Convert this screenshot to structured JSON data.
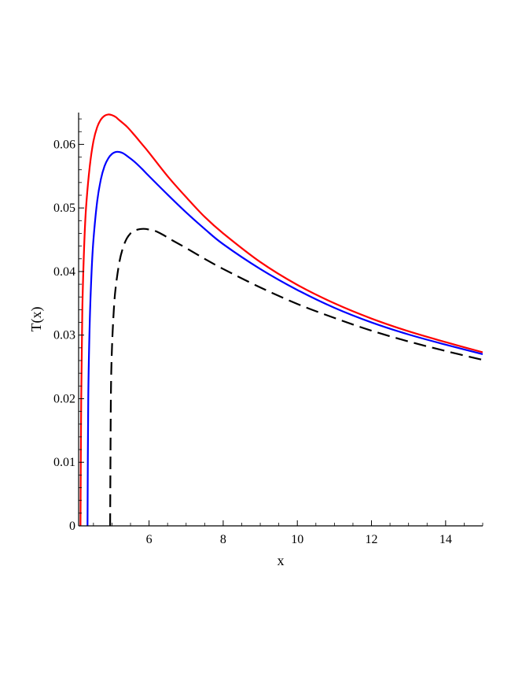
{
  "chart_data": {
    "type": "line",
    "title": "",
    "xlabel": "x",
    "ylabel": "T(x)",
    "xlim": [
      4.1,
      15
    ],
    "ylim": [
      0,
      0.065
    ],
    "xticks": [
      6,
      8,
      10,
      12,
      14
    ],
    "xtick_labels": [
      "6",
      "8",
      "10",
      "12",
      "14"
    ],
    "yticks": [
      0,
      0.01,
      0.02,
      0.03,
      0.04,
      0.05,
      0.06
    ],
    "ytick_labels": [
      "0",
      "0.01",
      "0.02",
      "0.03",
      "0.04",
      "0.05",
      "0.06"
    ],
    "grid": false,
    "legend": "none",
    "series": [
      {
        "color": "#ff0000",
        "dash": "solid",
        "x": [
          4.15,
          4.17,
          4.2,
          4.25,
          4.3,
          4.4,
          4.5,
          4.6,
          4.7,
          4.8,
          4.9,
          5.0,
          5.1,
          5.2,
          5.4,
          5.6,
          5.8,
          6.0,
          6.5,
          7.0,
          7.5,
          8.0,
          9.0,
          10.0,
          11.0,
          12.0,
          13.0,
          14.0,
          15.0
        ],
        "y": [
          0,
          0.02,
          0.034,
          0.044,
          0.05,
          0.0565,
          0.0605,
          0.0627,
          0.0639,
          0.0645,
          0.0647,
          0.0646,
          0.0643,
          0.0638,
          0.0628,
          0.0615,
          0.0601,
          0.0587,
          0.055,
          0.0517,
          0.0486,
          0.046,
          0.0415,
          0.0379,
          0.035,
          0.0326,
          0.0306,
          0.0289,
          0.0273
        ]
      },
      {
        "color": "#0000ff",
        "dash": "solid",
        "x": [
          4.34,
          4.36,
          4.4,
          4.45,
          4.5,
          4.6,
          4.7,
          4.8,
          4.9,
          5.0,
          5.1,
          5.2,
          5.3,
          5.4,
          5.6,
          5.8,
          6.0,
          6.5,
          7.0,
          7.5,
          8.0,
          9.0,
          10.0,
          11.0,
          12.0,
          13.0,
          14.0,
          15.0
        ],
        "y": [
          0,
          0.02,
          0.032,
          0.04,
          0.045,
          0.051,
          0.0545,
          0.0566,
          0.0578,
          0.0585,
          0.0588,
          0.0588,
          0.0586,
          0.0582,
          0.0573,
          0.0562,
          0.055,
          0.0521,
          0.0493,
          0.0467,
          0.0443,
          0.0404,
          0.0371,
          0.0343,
          0.032,
          0.0301,
          0.0285,
          0.027
        ]
      },
      {
        "color": "#000000",
        "dash": "dashed",
        "x": [
          4.95,
          4.97,
          5.0,
          5.05,
          5.1,
          5.2,
          5.3,
          5.4,
          5.5,
          5.6,
          5.7,
          5.8,
          5.9,
          6.0,
          6.1,
          6.2,
          6.4,
          6.6,
          7.0,
          7.5,
          8.0,
          9.0,
          10.0,
          11.0,
          12.0,
          13.0,
          14.0,
          15.0
        ],
        "y": [
          0,
          0.02,
          0.028,
          0.034,
          0.0375,
          0.0415,
          0.0438,
          0.0452,
          0.046,
          0.0464,
          0.0466,
          0.0467,
          0.0467,
          0.0466,
          0.0465,
          0.0463,
          0.0457,
          0.045,
          0.0437,
          0.042,
          0.0404,
          0.0375,
          0.0349,
          0.0327,
          0.0307,
          0.029,
          0.0275,
          0.0261
        ]
      }
    ]
  }
}
